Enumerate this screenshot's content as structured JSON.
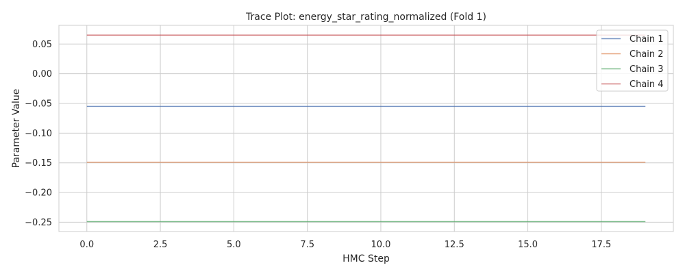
{
  "chart_data": {
    "type": "line",
    "title": "Trace Plot: energy_star_rating_normalized (Fold 1)",
    "xlabel": "HMC Step",
    "ylabel": "Parameter Value",
    "xlim": [
      -0.95,
      19.95
    ],
    "ylim": [
      -0.2657,
      0.0815
    ],
    "xticks": [
      0.0,
      2.5,
      5.0,
      7.5,
      10.0,
      12.5,
      15.0,
      17.5
    ],
    "xtick_labels": [
      "0.0",
      "2.5",
      "5.0",
      "7.5",
      "10.0",
      "12.5",
      "15.0",
      "17.5"
    ],
    "yticks": [
      0.05,
      0.0,
      -0.05,
      -0.1,
      -0.15,
      -0.2,
      -0.25
    ],
    "ytick_labels": [
      "0.05",
      "0.00",
      "−0.05",
      "−0.10",
      "−0.15",
      "−0.20",
      "−0.25"
    ],
    "grid": true,
    "legend_position": "top-right",
    "x": [
      0,
      19
    ],
    "series": [
      {
        "name": "Chain 1",
        "color": "#4c72b0",
        "values": [
          -0.055,
          -0.055
        ]
      },
      {
        "name": "Chain 2",
        "color": "#dd8452",
        "values": [
          -0.149,
          -0.149
        ]
      },
      {
        "name": "Chain 3",
        "color": "#55a868",
        "values": [
          -0.249,
          -0.249
        ]
      },
      {
        "name": "Chain 4",
        "color": "#c44e52",
        "values": [
          0.065,
          0.065
        ]
      }
    ]
  }
}
